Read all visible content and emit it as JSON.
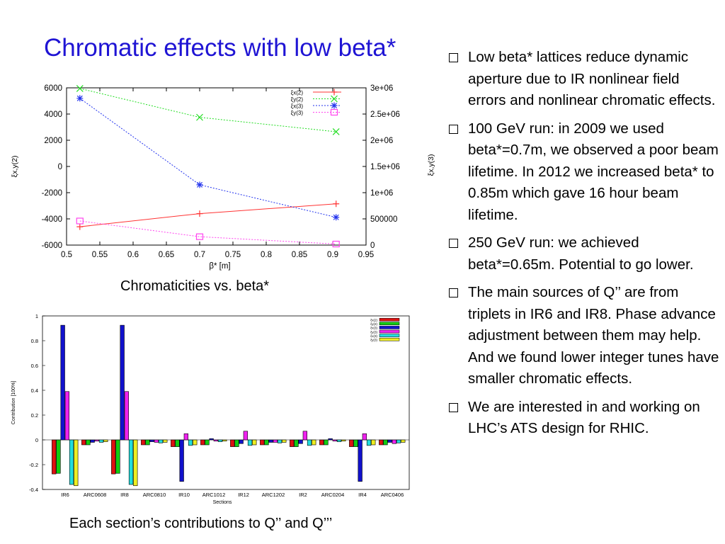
{
  "slide": {
    "title": "Chromatic effects with low beta*",
    "caption_top": "Chromaticities vs. beta*",
    "caption_bottom": "Each section’s contributions to Q’’ and Q’’’",
    "bullets": [
      "Low beta* lattices reduce dynamic aperture due to IR nonlinear field errors and nonlinear chromatic effects.",
      "100 GeV run: in 2009 we used beta*=0.7m, we observed a poor beam lifetime. In 2012 we increased beta* to 0.85m which gave 16 hour beam lifetime.",
      "250 GeV run:  we achieved beta*=0.65m.  Potential to go lower.",
      "The main sources of Q’’ are from triplets in IR6 and IR8. Phase advance adjustment between them may help. And we found lower integer tunes have smaller chromatic effects.",
      "We are interested in and working on LHC’s ATS design for RHIC."
    ]
  },
  "chart_data": [
    {
      "type": "line",
      "xlabel": "β* [m]",
      "ylabel": "ξx,y(2)",
      "y2label": "ξx,y(3)",
      "xlim": [
        0.5,
        0.95
      ],
      "ylim": [
        -6000,
        6000
      ],
      "y2lim": [
        0,
        3000000
      ],
      "xticks": [
        "0.5",
        "0.55",
        "0.6",
        "0.65",
        "0.7",
        "0.75",
        "0.8",
        "0.85",
        "0.9",
        "0.95"
      ],
      "yticks": [
        "6000",
        "4000",
        "2000",
        "0",
        "-2000",
        "-4000",
        "-6000"
      ],
      "y2ticks": [
        "3e+06",
        "2.5e+06",
        "2e+06",
        "1.5e+06",
        "1e+06",
        "500000",
        "0"
      ],
      "grid": false,
      "legend_position": "top-right",
      "series": [
        {
          "name": "ξx(2)",
          "axis": "left",
          "color": "#ff3333",
          "marker": "+",
          "dash": false,
          "x": [
            0.52,
            0.7,
            0.905
          ],
          "y": [
            -4600,
            -3600,
            -2850
          ]
        },
        {
          "name": "ξy(2)",
          "axis": "left",
          "color": "#22dd22",
          "marker": "x",
          "dash": true,
          "x": [
            0.52,
            0.7,
            0.905
          ],
          "y": [
            5950,
            3750,
            2650
          ]
        },
        {
          "name": "ξx(3)",
          "axis": "right",
          "color": "#2233ee",
          "marker": "*",
          "dash": true,
          "x": [
            0.52,
            0.7,
            0.905
          ],
          "y": [
            2800000,
            1150000,
            530000
          ]
        },
        {
          "name": "ξy(3)",
          "axis": "right",
          "color": "#ff44ee",
          "marker": "box",
          "dash": true,
          "x": [
            0.52,
            0.7,
            0.905
          ],
          "y": [
            460000,
            160000,
            20000
          ]
        }
      ]
    },
    {
      "type": "bar",
      "xlabel": "Sections",
      "ylabel": "Contribution [100%]",
      "ylim": [
        -0.4,
        1
      ],
      "yticks": [
        "1",
        "0.8",
        "0.6",
        "0.4",
        "0.2",
        "0",
        "-0.2",
        "-0.4"
      ],
      "grid": false,
      "legend_position": "top-right",
      "categories": [
        "IR6",
        "ARC0608",
        "IR8",
        "ARC0810",
        "IR10",
        "ARC1012",
        "IR12",
        "ARC1202",
        "IR2",
        "ARC0204",
        "IR4",
        "ARC0406"
      ],
      "series": [
        {
          "name": "ξx(2)",
          "color": "#dd1111",
          "values": [
            -0.275,
            -0.04,
            -0.275,
            -0.04,
            -0.055,
            -0.04,
            -0.055,
            -0.04,
            -0.055,
            -0.04,
            -0.055,
            -0.04
          ]
        },
        {
          "name": "ξy(2)",
          "color": "#11cc11",
          "values": [
            -0.27,
            -0.04,
            -0.27,
            -0.04,
            -0.055,
            -0.04,
            -0.055,
            -0.04,
            -0.055,
            -0.04,
            -0.055,
            -0.04
          ]
        },
        {
          "name": "ξx(3)",
          "color": "#1111cc",
          "values": [
            0.925,
            -0.02,
            0.925,
            -0.015,
            -0.335,
            0.01,
            -0.03,
            -0.02,
            -0.03,
            0.01,
            -0.335,
            -0.02
          ]
        },
        {
          "name": "ξy(3)",
          "color": "#ee22ee",
          "values": [
            0.39,
            -0.01,
            0.39,
            -0.02,
            0.05,
            -0.01,
            0.07,
            -0.02,
            0.07,
            -0.01,
            0.05,
            -0.03
          ]
        },
        {
          "name": "ξx(3)",
          "color": "#22dddd",
          "values": [
            -0.36,
            -0.02,
            -0.36,
            -0.025,
            -0.045,
            -0.015,
            -0.045,
            -0.025,
            -0.045,
            -0.015,
            -0.045,
            -0.025
          ]
        },
        {
          "name": "ξy(3)",
          "color": "#eeee22",
          "values": [
            -0.37,
            -0.015,
            -0.37,
            -0.02,
            -0.04,
            -0.01,
            -0.04,
            -0.02,
            -0.04,
            -0.01,
            -0.04,
            -0.02
          ]
        }
      ]
    }
  ]
}
